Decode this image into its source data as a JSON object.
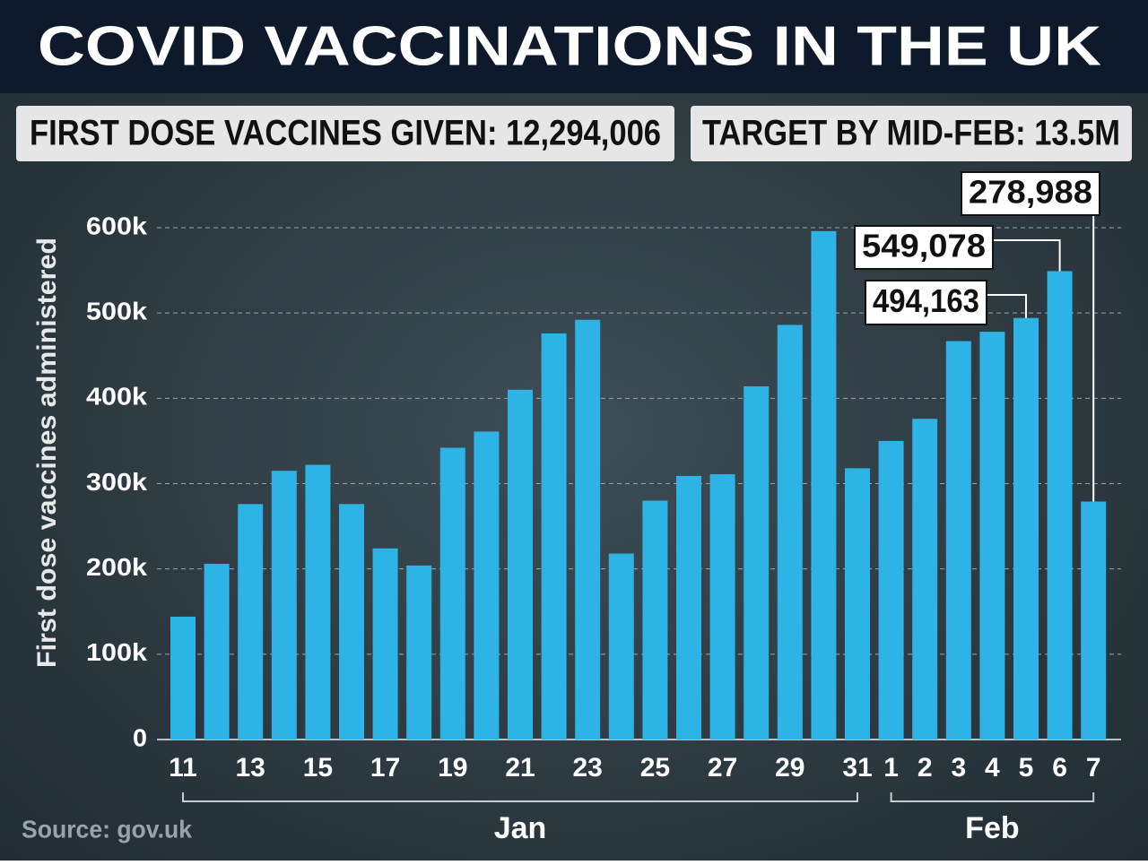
{
  "chart_data": {
    "type": "bar",
    "title": "COVID VACCINATIONS IN THE UK",
    "headlines": [
      "FIRST DOSE VACCINES GIVEN: 12,294,006",
      "TARGET BY MID-FEB: 13.5M"
    ],
    "y_label": "First dose vaccines administered",
    "source": "Source: gov.uk",
    "categories": [
      "11",
      null,
      "13",
      null,
      "15",
      null,
      "17",
      null,
      "19",
      null,
      "21",
      null,
      "23",
      null,
      "25",
      null,
      "27",
      null,
      "29",
      null,
      "31",
      "1",
      "2",
      "3",
      "4",
      "5",
      "6",
      "7"
    ],
    "groups": [
      "Jan",
      "Feb"
    ],
    "values": [
      144000,
      206000,
      276000,
      315000,
      322000,
      276000,
      224000,
      204000,
      342000,
      361000,
      410000,
      476000,
      492000,
      218000,
      280000,
      309000,
      311000,
      414000,
      486000,
      596000,
      318000,
      350000,
      376000,
      467000,
      478000,
      494163,
      549078,
      278988
    ],
    "value_labels": [
      null,
      null,
      null,
      null,
      null,
      null,
      null,
      null,
      null,
      null,
      null,
      null,
      null,
      null,
      null,
      null,
      null,
      null,
      null,
      null,
      null,
      null,
      null,
      null,
      null,
      "494,163",
      "549,078",
      "278,988"
    ],
    "color": "#2db3e6",
    "ylim": [
      0,
      600000
    ],
    "yticks": [
      0,
      {
        "value": 100000,
        "label": "100k"
      },
      {
        "value": 200000,
        "label": "200k"
      },
      {
        "value": 300000,
        "label": "300k"
      },
      {
        "value": 400000,
        "label": "400k"
      },
      {
        "value": 500000,
        "label": "500k"
      },
      {
        "value": 600000,
        "label": "600k"
      }
    ],
    "grid": true
  }
}
